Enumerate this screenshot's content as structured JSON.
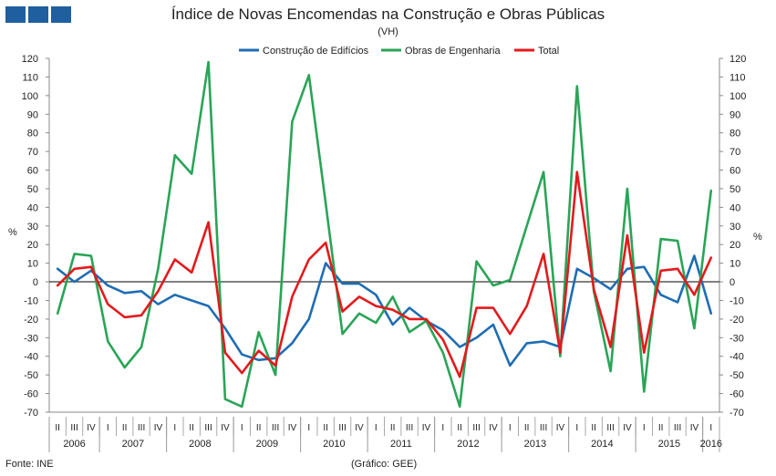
{
  "header": {
    "title": "Índice de Novas Encomendas na Construção e Obras Públicas",
    "subtitle": "(VH)",
    "logo_colors": [
      "#1f5fa0",
      "#1f5fa0",
      "#1f5fa0"
    ]
  },
  "footer": {
    "source": "Fonte: INE",
    "credit": "(Gráfico: GEE)"
  },
  "chart_data": {
    "type": "line",
    "title": "Índice de Novas Encomendas na Construção e Obras Públicas",
    "subtitle": "(VH)",
    "ylabel_left": "%",
    "ylabel_right": "%",
    "ylim": [
      -70,
      120
    ],
    "ytick_step": 10,
    "grid": false,
    "legend_position": "top-center",
    "quarters": [
      "II",
      "III",
      "IV",
      "I",
      "II",
      "III",
      "IV",
      "I",
      "II",
      "III",
      "IV",
      "I",
      "II",
      "III",
      "IV",
      "I",
      "II",
      "III",
      "IV",
      "I",
      "II",
      "III",
      "IV",
      "I",
      "II",
      "III",
      "IV",
      "I",
      "II",
      "III",
      "IV",
      "I",
      "II",
      "III",
      "IV",
      "I",
      "II",
      "III",
      "IV",
      "I"
    ],
    "years": [
      {
        "label": "2006",
        "span": 3
      },
      {
        "label": "2007",
        "span": 4
      },
      {
        "label": "2008",
        "span": 4
      },
      {
        "label": "2009",
        "span": 4
      },
      {
        "label": "2010",
        "span": 4
      },
      {
        "label": "2011",
        "span": 4
      },
      {
        "label": "2012",
        "span": 4
      },
      {
        "label": "2013",
        "span": 4
      },
      {
        "label": "2014",
        "span": 4
      },
      {
        "label": "2015",
        "span": 4
      },
      {
        "label": "2016",
        "span": 1
      }
    ],
    "series": [
      {
        "name": "Construção de Edifícios",
        "color": "#1f6db3",
        "values": [
          7,
          0,
          6,
          -2,
          -6,
          -5,
          -12,
          -7,
          -10,
          -13,
          -25,
          -39,
          -42,
          -41,
          -33,
          -20,
          10,
          -1,
          -1,
          -7,
          -23,
          -14,
          -21,
          -26,
          -35,
          -30,
          -23,
          -45,
          -33,
          -32,
          -35,
          7,
          2,
          -4,
          7,
          8,
          -7,
          -11,
          14,
          -17
        ]
      },
      {
        "name": "Obras de Engenharia",
        "color": "#2aa457",
        "values": [
          -17,
          15,
          14,
          -32,
          -46,
          -35,
          7,
          68,
          58,
          118,
          -63,
          -67,
          -27,
          -50,
          86,
          111,
          42,
          -28,
          -17,
          -22,
          -8,
          -27,
          -21,
          -38,
          -67,
          11,
          -2,
          1,
          30,
          59,
          -40,
          105,
          -5,
          -48,
          50,
          -59,
          23,
          22,
          -25,
          49
        ]
      },
      {
        "name": "Total",
        "color": "#e31a1c",
        "values": [
          -2,
          7,
          8,
          -12,
          -19,
          -18,
          -5,
          12,
          5,
          32,
          -38,
          -49,
          -37,
          -45,
          -8,
          12,
          21,
          -16,
          -8,
          -13,
          -15,
          -20,
          -20,
          -31,
          -51,
          -14,
          -14,
          -28,
          -13,
          15,
          -38,
          59,
          -4,
          -35,
          25,
          -38,
          6,
          7,
          -7,
          13
        ]
      }
    ]
  }
}
